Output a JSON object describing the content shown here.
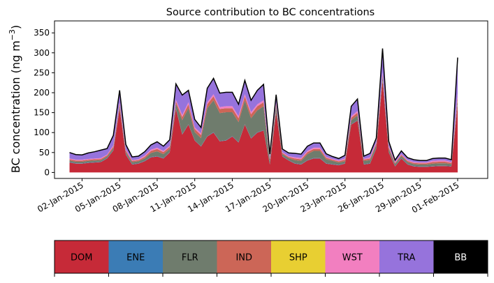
{
  "chart_data": {
    "type": "area",
    "title": "Source contribution to BC concentrations",
    "ylabel_main": "BC concentration (ng m",
    "ylabel_sup": "−3",
    "ylabel_close": ")",
    "xlabel": "",
    "ylim": [
      -15,
      380
    ],
    "yticks": [
      0,
      50,
      100,
      150,
      200,
      250,
      300,
      350
    ],
    "xlim": [
      -1.2,
      33.4
    ],
    "xticks": [
      {
        "day": 1,
        "label": "02-Jan-2015"
      },
      {
        "day": 4,
        "label": "05-Jan-2015"
      },
      {
        "day": 7,
        "label": "08-Jan-2015"
      },
      {
        "day": 10,
        "label": "11-Jan-2015"
      },
      {
        "day": 13,
        "label": "14-Jan-2015"
      },
      {
        "day": 16,
        "label": "17-Jan-2015"
      },
      {
        "day": 19,
        "label": "20-Jan-2015"
      },
      {
        "day": 22,
        "label": "23-Jan-2015"
      },
      {
        "day": 25,
        "label": "26-Jan-2015"
      },
      {
        "day": 28,
        "label": "29-Jan-2015"
      },
      {
        "day": 31,
        "label": "01-Feb-2015"
      }
    ],
    "x_days": [
      0,
      0.5,
      1,
      1.5,
      2,
      2.5,
      3,
      3.5,
      4,
      4.5,
      5,
      5.5,
      6,
      6.5,
      7,
      7.5,
      8,
      8.5,
      9,
      9.5,
      10,
      10.5,
      11,
      11.5,
      12,
      12.5,
      13,
      13.5,
      14,
      14.5,
      15,
      15.5,
      16,
      16.5,
      17,
      17.5,
      18,
      18.5,
      19,
      19.5,
      20,
      20.5,
      21,
      21.5,
      22,
      22.5,
      23,
      23.5,
      24,
      24.5,
      25,
      25.5,
      26,
      26.5,
      27,
      27.5,
      28,
      28.5,
      29,
      29.5,
      30,
      30.5,
      31
    ],
    "series": [
      {
        "name": "DOM",
        "color": "#c62a38",
        "values": [
          25,
          22,
          22,
          24,
          25,
          26,
          35,
          55,
          160,
          45,
          20,
          22,
          28,
          38,
          40,
          35,
          50,
          160,
          95,
          120,
          80,
          65,
          90,
          100,
          78,
          80,
          90,
          75,
          120,
          85,
          100,
          105,
          20,
          150,
          40,
          30,
          22,
          20,
          30,
          35,
          35,
          22,
          20,
          18,
          22,
          120,
          130,
          20,
          22,
          60,
          230,
          50,
          15,
          35,
          20,
          15,
          14,
          14,
          15,
          16,
          16,
          15,
          170
        ]
      },
      {
        "name": "ENE",
        "color": "#3b7cb5",
        "values": [
          1,
          1,
          1,
          1,
          1,
          1,
          1,
          1,
          2,
          1,
          1,
          1,
          1,
          1,
          1,
          1,
          1,
          2,
          1,
          1,
          1,
          1,
          1,
          1,
          1,
          1,
          1,
          1,
          1,
          1,
          1,
          1,
          1,
          1,
          1,
          1,
          1,
          1,
          1,
          1,
          1,
          1,
          1,
          1,
          1,
          1,
          1,
          1,
          1,
          1,
          1,
          1,
          1,
          1,
          1,
          1,
          1,
          1,
          1,
          1,
          1,
          1,
          2
        ]
      },
      {
        "name": "FLR",
        "color": "#6f7c6d",
        "values": [
          4,
          4,
          4,
          4,
          4,
          4,
          4,
          5,
          5,
          5,
          5,
          5,
          6,
          10,
          12,
          10,
          8,
          10,
          35,
          40,
          20,
          20,
          70,
          80,
          70,
          70,
          60,
          50,
          60,
          50,
          55,
          60,
          8,
          15,
          5,
          5,
          8,
          8,
          15,
          18,
          18,
          10,
          8,
          6,
          5,
          10,
          12,
          8,
          8,
          8,
          10,
          8,
          5,
          5,
          5,
          5,
          5,
          5,
          6,
          6,
          6,
          5,
          8
        ]
      },
      {
        "name": "IND",
        "color": "#cc6657",
        "values": [
          3,
          3,
          3,
          3,
          3,
          3,
          3,
          4,
          5,
          4,
          3,
          3,
          4,
          5,
          6,
          5,
          5,
          6,
          8,
          10,
          8,
          8,
          10,
          10,
          10,
          10,
          10,
          10,
          10,
          10,
          10,
          10,
          4,
          5,
          3,
          3,
          4,
          4,
          5,
          5,
          5,
          4,
          3,
          3,
          4,
          6,
          7,
          3,
          4,
          4,
          6,
          4,
          3,
          3,
          3,
          3,
          3,
          3,
          4,
          4,
          4,
          3,
          10
        ]
      },
      {
        "name": "SHP",
        "color": "#e8cf32",
        "values": [
          0,
          0,
          0,
          0,
          0,
          0,
          0,
          0,
          0,
          0,
          0,
          0,
          0,
          0,
          0,
          0,
          0,
          0,
          0,
          0,
          0,
          0,
          0,
          0,
          0,
          0,
          0,
          0,
          0,
          0,
          0,
          0,
          0,
          0,
          0,
          0,
          0,
          0,
          0,
          0,
          0,
          0,
          0,
          0,
          0,
          0,
          0,
          0,
          0,
          0,
          0,
          0,
          0,
          0,
          0,
          0,
          0,
          0,
          0,
          0,
          0,
          0,
          0
        ]
      },
      {
        "name": "WST",
        "color": "#f27fc0",
        "values": [
          2,
          2,
          2,
          2,
          2,
          2,
          2,
          3,
          4,
          3,
          2,
          2,
          3,
          3,
          3,
          3,
          3,
          4,
          5,
          5,
          4,
          4,
          5,
          5,
          5,
          5,
          5,
          5,
          5,
          5,
          5,
          5,
          3,
          4,
          2,
          2,
          3,
          3,
          3,
          3,
          3,
          2,
          2,
          2,
          3,
          4,
          4,
          2,
          3,
          3,
          4,
          3,
          2,
          2,
          2,
          2,
          2,
          2,
          3,
          3,
          3,
          2,
          8
        ]
      },
      {
        "name": "TRA",
        "color": "#9673dc",
        "values": [
          15,
          13,
          12,
          15,
          17,
          20,
          15,
          25,
          30,
          12,
          8,
          8,
          10,
          12,
          15,
          12,
          15,
          40,
          50,
          30,
          20,
          15,
          35,
          40,
          35,
          35,
          35,
          30,
          35,
          30,
          35,
          40,
          10,
          20,
          8,
          8,
          10,
          10,
          12,
          12,
          12,
          8,
          6,
          5,
          8,
          25,
          30,
          7,
          10,
          10,
          60,
          12,
          5,
          8,
          6,
          6,
          5,
          5,
          6,
          6,
          6,
          6,
          90
        ]
      }
    ],
    "bb_total": [
      50,
      45,
      44,
      49,
      52,
      56,
      60,
      93,
      206,
      70,
      39,
      41,
      52,
      69,
      77,
      66,
      82,
      222,
      194,
      206,
      133,
      113,
      211,
      236,
      199,
      201,
      201,
      171,
      231,
      181,
      206,
      221,
      46,
      195,
      59,
      49,
      48,
      46,
      66,
      74,
      74,
      47,
      40,
      35,
      43,
      166,
      184,
      41,
      48,
      86,
      311,
      78,
      31,
      54,
      37,
      32,
      30,
      30,
      35,
      36,
      36,
      32,
      288
    ]
  },
  "colorbar": {
    "labels": [
      "DOM",
      "ENE",
      "FLR",
      "IND",
      "SHP",
      "WST",
      "TRA",
      "BB"
    ],
    "colors": [
      "#c62a38",
      "#3b7cb5",
      "#6f7c6d",
      "#cc6657",
      "#e8cf32",
      "#f27fc0",
      "#9673dc",
      "#000000"
    ],
    "text_colors": [
      "#000000",
      "#000000",
      "#000000",
      "#000000",
      "#000000",
      "#000000",
      "#000000",
      "#ffffff"
    ]
  }
}
